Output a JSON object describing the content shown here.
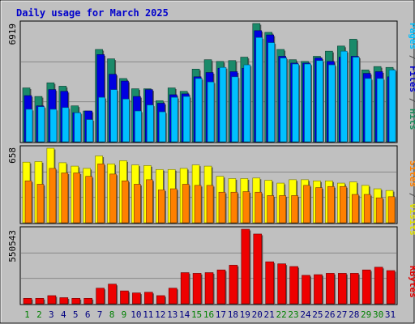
{
  "title": "Daily usage for March 2025",
  "panels": {
    "top": {
      "max_label": "6919",
      "right_labels": [
        {
          "text": "Pages",
          "color": "#00c0ff"
        },
        {
          "text": " / ",
          "color": "#4a4a4a"
        },
        {
          "text": "Files",
          "color": "#0000c8"
        },
        {
          "text": " / ",
          "color": "#4a4a4a"
        },
        {
          "text": "Hits",
          "color": "#1a8a5a"
        }
      ]
    },
    "middle": {
      "max_label": "658",
      "right_labels": [
        {
          "text": "Sites",
          "color": "#ff8000"
        },
        {
          "text": " / ",
          "color": "#4a4a4a"
        },
        {
          "text": "Visits",
          "color": "#e0e000"
        }
      ]
    },
    "bottom": {
      "max_label": "550543",
      "right_labels": [
        {
          "text": "KBytes",
          "color": "#e00000"
        }
      ]
    }
  },
  "colors": {
    "title": "#0000cc",
    "hits": "#1a8a6a",
    "files": "#0000e0",
    "pages": "#00c0ff",
    "visits": "#ffff00",
    "sites": "#ff8000",
    "kbytes": "#ee0000",
    "weekday": "#008000",
    "weekend": "#000080"
  },
  "chart_data": {
    "type": "bar",
    "days": [
      "1",
      "2",
      "3",
      "4",
      "5",
      "6",
      "7",
      "8",
      "9",
      "10",
      "11",
      "12",
      "13",
      "14",
      "15",
      "16",
      "17",
      "18",
      "19",
      "20",
      "21",
      "22",
      "23",
      "24",
      "25",
      "26",
      "27",
      "28",
      "29",
      "30",
      "31"
    ],
    "weekend_days": [
      "1",
      "2",
      "8",
      "9",
      "15",
      "16",
      "22",
      "23",
      "29",
      "30"
    ],
    "series": [
      {
        "name": "Hits",
        "panel": "top",
        "values": [
          3150,
          2650,
          3450,
          3250,
          2100,
          1800,
          5400,
          4850,
          3700,
          3100,
          3100,
          2400,
          3150,
          2950,
          4250,
          4800,
          4700,
          4750,
          4950,
          6919,
          6400,
          5400,
          4800,
          4700,
          5000,
          5300,
          5600,
          6000,
          4200,
          4400,
          4350
        ]
      },
      {
        "name": "Files",
        "panel": "top",
        "values": [
          2700,
          2100,
          3050,
          2950,
          1700,
          1800,
          5100,
          3950,
          3550,
          2650,
          3050,
          2250,
          2750,
          2800,
          3800,
          4050,
          4300,
          4100,
          4300,
          6500,
          6250,
          5000,
          4600,
          4600,
          4900,
          4700,
          4950,
          5000,
          4000,
          4100,
          3800
        ]
      },
      {
        "name": "Pages",
        "panel": "top",
        "values": [
          1900,
          2050,
          1900,
          2000,
          1700,
          1300,
          2600,
          3050,
          2500,
          1800,
          2150,
          1750,
          2600,
          2650,
          3700,
          3500,
          4350,
          3800,
          4500,
          6100,
          5800,
          4900,
          4550,
          4550,
          4750,
          4500,
          5300,
          4950,
          3700,
          3700,
          4200
        ]
      },
      {
        "name": "Visits",
        "panel": "middle",
        "values": [
          535,
          540,
          658,
          530,
          500,
          480,
          590,
          520,
          548,
          510,
          505,
          470,
          470,
          480,
          510,
          500,
          410,
          390,
          390,
          395,
          375,
          350,
          380,
          380,
          370,
          370,
          350,
          360,
          330,
          300,
          285
        ]
      },
      {
        "name": "Sites",
        "panel": "middle",
        "values": [
          370,
          340,
          480,
          440,
          440,
          410,
          520,
          430,
          370,
          340,
          380,
          290,
          300,
          340,
          330,
          330,
          270,
          270,
          275,
          270,
          240,
          240,
          240,
          330,
          310,
          320,
          320,
          250,
          250,
          220,
          230
        ]
      },
      {
        "name": "KBytes",
        "panel": "bottom",
        "values": [
          40000,
          40000,
          60000,
          45000,
          40000,
          40000,
          115000,
          145000,
          95000,
          80000,
          85000,
          60000,
          115000,
          230000,
          225000,
          230000,
          250000,
          285000,
          550543,
          515000,
          310000,
          295000,
          275000,
          210000,
          215000,
          225000,
          225000,
          225000,
          250000,
          270000,
          245000
        ]
      }
    ],
    "ylim_top": [
      0,
      6919
    ],
    "ylim_middle": [
      0,
      658
    ],
    "ylim_bottom": [
      0,
      550543
    ],
    "grid": true
  }
}
